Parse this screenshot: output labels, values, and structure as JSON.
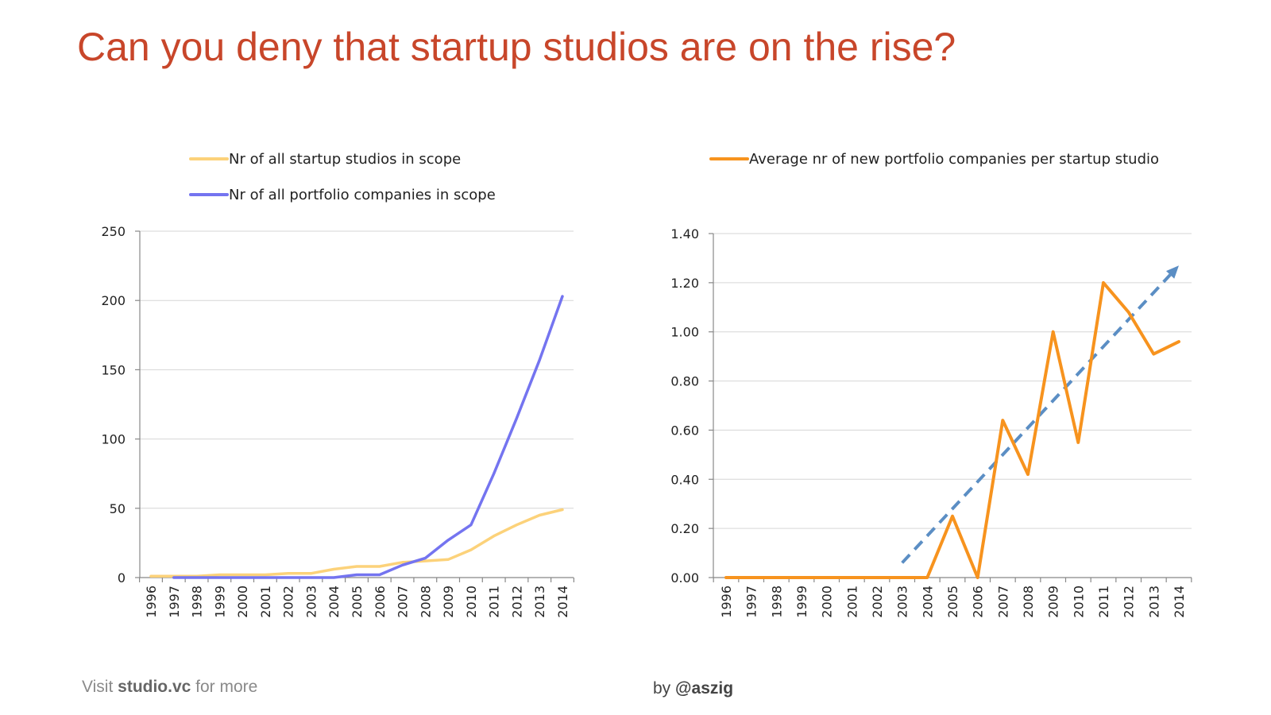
{
  "title": "Can you deny that startup studios are on the rise?",
  "footer": {
    "visit_prefix": "Visit",
    "visit_link": "studio.vc",
    "visit_suffix": "for more",
    "by_prefix": "by",
    "by_handle": "@aszig"
  },
  "chart_data": [
    {
      "type": "line",
      "title": "",
      "xlabel": "",
      "ylabel": "",
      "categories": [
        "1996",
        "1997",
        "1998",
        "1999",
        "2000",
        "2001",
        "2002",
        "2003",
        "2004",
        "2005",
        "2006",
        "2007",
        "2008",
        "2009",
        "2010",
        "2011",
        "2012",
        "2013",
        "2014"
      ],
      "ylim": [
        0,
        250
      ],
      "yticks": [
        0,
        50,
        100,
        150,
        200,
        250
      ],
      "ytick_labels": [
        "0",
        "50",
        "100",
        "150",
        "200",
        "250"
      ],
      "grid": true,
      "legend_position": "top",
      "series": [
        {
          "name": "Nr of all startup studios in scope",
          "color": "#fcd27a",
          "values": [
            1,
            1,
            1,
            2,
            2,
            2,
            3,
            3,
            6,
            8,
            8,
            11,
            12,
            13,
            20,
            30,
            38,
            45,
            49
          ]
        },
        {
          "name": "Nr of all portfolio companies in scope",
          "color": "#7474f0",
          "values": [
            null,
            0,
            0,
            0,
            0,
            0,
            0,
            0,
            0,
            2,
            2,
            9,
            14,
            27,
            38,
            75,
            115,
            157,
            203
          ]
        }
      ]
    },
    {
      "type": "line",
      "title": "",
      "xlabel": "",
      "ylabel": "",
      "categories": [
        "1996",
        "1997",
        "1998",
        "1999",
        "2000",
        "2001",
        "2002",
        "2003",
        "2004",
        "2005",
        "2006",
        "2007",
        "2008",
        "2009",
        "2010",
        "2011",
        "2012",
        "2013",
        "2014"
      ],
      "ylim": [
        0,
        1.4
      ],
      "yticks": [
        0,
        0.2,
        0.4,
        0.6,
        0.8,
        1.0,
        1.2,
        1.4
      ],
      "ytick_labels": [
        "0.00",
        "0.20",
        "0.40",
        "0.60",
        "0.80",
        "1.00",
        "1.20",
        "1.40"
      ],
      "grid": true,
      "legend_position": "top",
      "series": [
        {
          "name": "Average nr of new portfolio companies per startup studio",
          "color": "#f7931e",
          "values": [
            0,
            0,
            0,
            0,
            0,
            0,
            0,
            0,
            0,
            0.25,
            0,
            0.64,
            0.42,
            1.0,
            0.55,
            1.2,
            1.08,
            0.91,
            0.96
          ]
        }
      ],
      "trend_arrow": {
        "style": "dashed",
        "color": "#5b8ec4",
        "from": {
          "x": "2003",
          "y": 0.06
        },
        "to": {
          "x": "2014",
          "y": 1.27
        }
      }
    }
  ]
}
